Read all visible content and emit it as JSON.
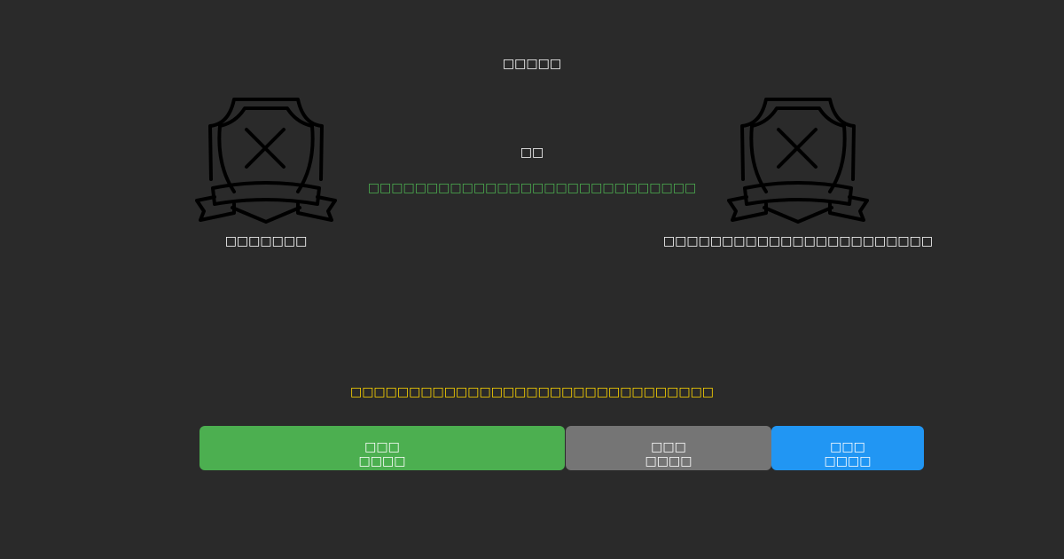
{
  "title": "□□□□□",
  "center": {
    "heading": "□□",
    "status_text": "□□□□□□□□□□□□□□□□□□□□□□□□□□□□",
    "status_color": "#4caf50"
  },
  "left_badge": {
    "icon": "shield-x-icon",
    "label": "□□□□□□□"
  },
  "right_badge": {
    "icon": "shield-x-icon",
    "label": "□□□□□□□□□□□□□□□□□□□□□□□"
  },
  "notice": {
    "text": "□□□□□□□□□□□□□□□□□□□□□□□□□□□□□□□",
    "color": "#ffd700"
  },
  "buttons": [
    {
      "line1": "□□□",
      "line2": "□□□□",
      "color": "#4caf50"
    },
    {
      "line1": "□□□",
      "line2": "□□□□",
      "color": "#757575"
    },
    {
      "line1": "□□□",
      "line2": "□□□□",
      "color": "#2196f3"
    }
  ]
}
